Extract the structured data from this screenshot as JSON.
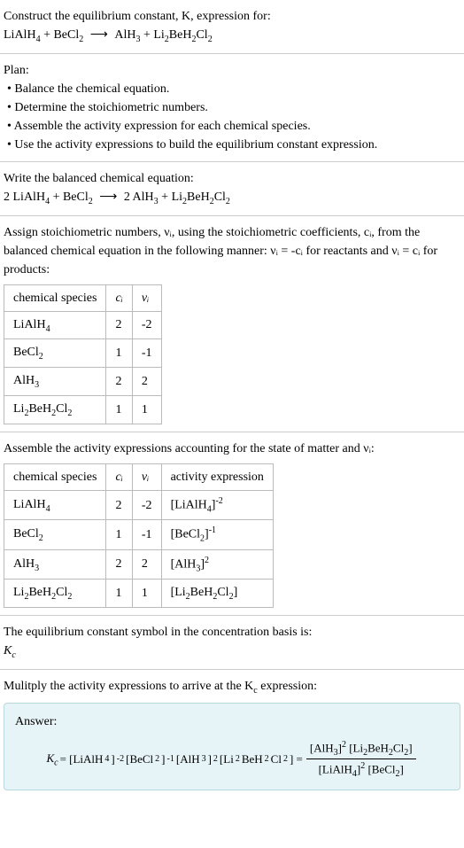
{
  "section1": {
    "line1": "Construct the equilibrium constant, K, expression for:",
    "eq_lhs1": "LiAlH",
    "eq_sub1": "4",
    "plus1": " + BeCl",
    "eq_sub2": "2",
    "arrow": " ⟶ ",
    "eq_rhs1": "AlH",
    "eq_sub3": "3",
    "plus2": " + Li",
    "eq_sub4": "2",
    "rhs2": "BeH",
    "eq_sub5": "2",
    "rhs3": "Cl",
    "eq_sub6": "2"
  },
  "plan": {
    "title": "Plan:",
    "b1": "• Balance the chemical equation.",
    "b2": "• Determine the stoichiometric numbers.",
    "b3": "• Assemble the activity expression for each chemical species.",
    "b4": "• Use the activity expressions to build the equilibrium constant expression."
  },
  "balanced": {
    "title": "Write the balanced chemical equation:",
    "c1": "2 LiAlH",
    "s1": "4",
    "c2": " + BeCl",
    "s2": "2",
    "arrow": " ⟶ ",
    "c3": "2 AlH",
    "s3": "3",
    "c4": " + Li",
    "s4": "2",
    "c5": "BeH",
    "s5": "2",
    "c6": "Cl",
    "s6": "2"
  },
  "assign": {
    "line": "Assign stoichiometric numbers, νᵢ, using the stoichiometric coefficients, cᵢ, from the balanced chemical equation in the following manner: νᵢ = -cᵢ for reactants and νᵢ = cᵢ for products:",
    "headers": {
      "h1": "chemical species",
      "h2": "cᵢ",
      "h3": "νᵢ"
    },
    "rows": [
      {
        "sp": "LiAlH",
        "sp_sub": "4",
        "c": "2",
        "v": "-2"
      },
      {
        "sp": "BeCl",
        "sp_sub": "2",
        "c": "1",
        "v": "-1"
      },
      {
        "sp": "AlH",
        "sp_sub": "3",
        "c": "2",
        "v": "2"
      },
      {
        "sp": "Li",
        "sp_sub": "2",
        "sp2": "BeH",
        "sp_sub2": "2",
        "sp3": "Cl",
        "sp_sub3": "2",
        "c": "1",
        "v": "1"
      }
    ]
  },
  "assemble": {
    "title": "Assemble the activity expressions accounting for the state of matter and νᵢ:",
    "headers": {
      "h1": "chemical species",
      "h2": "cᵢ",
      "h3": "νᵢ",
      "h4": "activity expression"
    },
    "rows": [
      {
        "sp": "LiAlH",
        "sp_sub": "4",
        "c": "2",
        "v": "-2",
        "ae": "[LiAlH",
        "ae_sub": "4",
        "ae2": "]",
        "ae_sup": "-2"
      },
      {
        "sp": "BeCl",
        "sp_sub": "2",
        "c": "1",
        "v": "-1",
        "ae": "[BeCl",
        "ae_sub": "2",
        "ae2": "]",
        "ae_sup": "-1"
      },
      {
        "sp": "AlH",
        "sp_sub": "3",
        "c": "2",
        "v": "2",
        "ae": "[AlH",
        "ae_sub": "3",
        "ae2": "]",
        "ae_sup": "2"
      },
      {
        "sp": "Li",
        "sp_sub": "2",
        "sp2": "BeH",
        "sp_sub2": "2",
        "sp3": "Cl",
        "sp_sub3": "2",
        "c": "1",
        "v": "1",
        "ae": "[Li",
        "ae_sub": "2",
        "ae1b": "BeH",
        "ae_sub1b": "2",
        "ae1c": "Cl",
        "ae_sub1c": "2",
        "ae2": "]"
      }
    ]
  },
  "symbol": {
    "line": "The equilibrium constant symbol in the concentration basis is:",
    "kc": "K",
    "kc_sub": "c"
  },
  "multiply": {
    "line": "Mulitply the activity expressions to arrive at the K",
    "sub": "c",
    "line2": " expression:"
  },
  "answer": {
    "label": "Answer:",
    "kc": "K",
    "kc_sub": "c",
    "eq": " = [LiAlH",
    "s1": "4",
    "p1": "]",
    "e1": "-2",
    "p2": " [BeCl",
    "s2": "2",
    "p3": "]",
    "e2": "-1",
    "p4": " [AlH",
    "s3": "3",
    "p5": "]",
    "e3": "2",
    "p6": " [Li",
    "s4": "2",
    "p7": "BeH",
    "s5": "2",
    "p8": "Cl",
    "s6": "2",
    "p9": "] = ",
    "num1": "[AlH",
    "ns1": "3",
    "num2": "]",
    "ne1": "2",
    "num3": " [Li",
    "ns2": "2",
    "num4": "BeH",
    "ns3": "2",
    "num5": "Cl",
    "ns4": "2",
    "num6": "]",
    "den1": "[LiAlH",
    "ds1": "4",
    "den2": "]",
    "de1": "2",
    "den3": " [BeCl",
    "ds2": "2",
    "den4": "]"
  }
}
